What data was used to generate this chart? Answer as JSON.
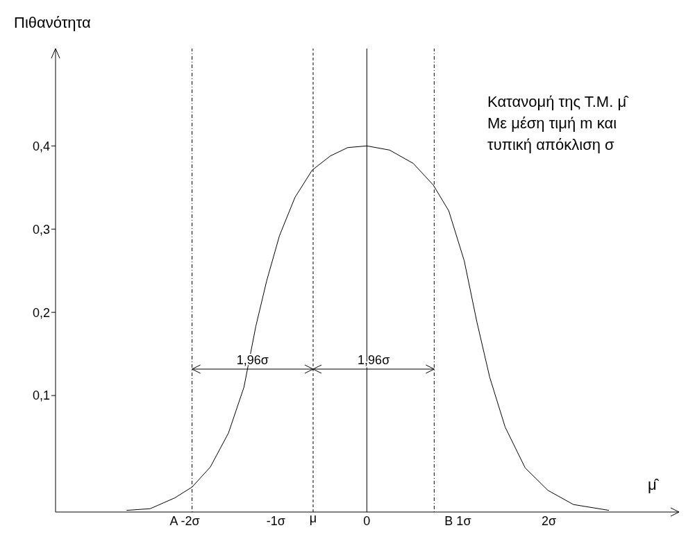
{
  "chart_data": {
    "type": "line",
    "ylabel": "Πιθανότητα",
    "xlabel": "μ̂",
    "annotations": [
      "Κατανομή της Τ.Μ. μ̂",
      "Με μέση τιμή m και",
      "τυπική απόκλιση σ",
      "1,96σ",
      "1,96σ"
    ],
    "x": [
      -2.64,
      -2.38,
      -2.11,
      -1.92,
      -1.72,
      -1.52,
      -1.35,
      -1.22,
      -1.1,
      -0.96,
      -0.79,
      -0.6,
      -0.4,
      -0.21,
      0,
      0.25,
      0.51,
      0.73,
      0.9,
      1.07,
      1.21,
      1.35,
      1.52,
      1.74,
      1.99,
      2.27,
      2.66
    ],
    "series": [
      {
        "color": "#000000",
        "values": [
          -0.038,
          -0.036,
          -0.023,
          -0.01,
          0.014,
          0.055,
          0.11,
          0.183,
          0.238,
          0.292,
          0.338,
          0.371,
          0.388,
          0.398,
          0.4,
          0.395,
          0.379,
          0.353,
          0.322,
          0.262,
          0.188,
          0.122,
          0.062,
          0.013,
          -0.014,
          -0.031,
          -0.038
        ]
      }
    ],
    "xlim": [
      -3.42,
      3.43
    ],
    "ylim": [
      -0.04,
      0.517
    ],
    "xticks": [
      {
        "value": -2,
        "label": "A -2σ"
      },
      {
        "value": -1,
        "label": "-1σ"
      },
      {
        "value": 0,
        "label": "0"
      },
      {
        "value": 1,
        "label": "B 1σ"
      },
      {
        "value": 2,
        "label": "2σ"
      }
    ],
    "yticks": [
      {
        "value": 0.1,
        "label": "0,1"
      },
      {
        "value": 0.2,
        "label": "0,2"
      },
      {
        "value": 0.3,
        "label": "0,3"
      },
      {
        "value": 0.4,
        "label": "0,4"
      }
    ],
    "ref_lines": [
      {
        "axis": "x",
        "value": -1.92,
        "line_style": "dotted",
        "color": "#000000"
      },
      {
        "axis": "x",
        "value": -0.59,
        "label": "μ",
        "line_style": "dashed",
        "color": "#000000"
      },
      {
        "axis": "x",
        "value": 0,
        "line_style": "solid",
        "color": "#000000"
      },
      {
        "axis": "x",
        "value": 0.74,
        "line_style": "dotted",
        "color": "#000000"
      }
    ],
    "grid": false,
    "marker": "none",
    "line_style": "solid"
  }
}
